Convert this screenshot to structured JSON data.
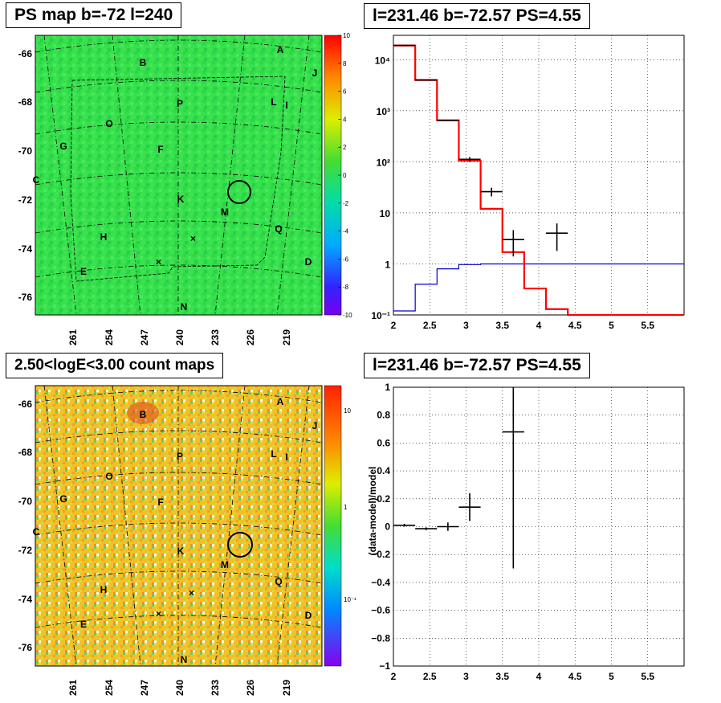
{
  "panels": {
    "tl_title": "PS map b=-72 l=240",
    "tr_title": "l=231.46 b=-72.57 PS=4.55",
    "bl_title": "2.50<logE<3.00 count maps",
    "br_title": "l=231.46 b=-72.57 PS=4.55"
  },
  "map_ticks": {
    "lat": [
      "-66",
      "-68",
      "-70",
      "-72",
      "-74",
      "-76"
    ],
    "lon": [
      "261",
      "254",
      "247",
      "240",
      "233",
      "226",
      "219"
    ]
  },
  "source_labels": [
    {
      "t": "A"
    },
    {
      "t": "B"
    },
    {
      "t": "J"
    },
    {
      "t": "P"
    },
    {
      "t": "L"
    },
    {
      "t": "I"
    },
    {
      "t": "O"
    },
    {
      "t": "G"
    },
    {
      "t": "F"
    },
    {
      "t": "C"
    },
    {
      "t": "K"
    },
    {
      "t": "M"
    },
    {
      "t": "H"
    },
    {
      "t": "Q"
    },
    {
      "t": "D"
    },
    {
      "t": "E"
    },
    {
      "t": "N"
    }
  ],
  "colorbar_ps": [
    "10",
    "8",
    "6",
    "4",
    "2",
    "0",
    "-2",
    "-4",
    "-6",
    "-8",
    "-10"
  ],
  "colorbar_counts": [
    "10",
    "1",
    "10⁻¹"
  ],
  "colors": {
    "ps_map_bg": "#33e04a",
    "count_map_bg": "#f0c020",
    "model_line": "#ff0000",
    "ps_line": "#0000cc",
    "data": "#000000"
  },
  "chart_data": [
    {
      "type": "line",
      "panel": "spectrum",
      "title": "l=231.46 b=-72.57 PS=4.55",
      "xlim": [
        2,
        6
      ],
      "ylim": [
        0.1,
        30000
      ],
      "log_y": true,
      "x_ticks": [
        "2",
        "2.5",
        "3",
        "3.5",
        "4",
        "4.5",
        "5",
        "5.5"
      ],
      "y_ticks": [
        "10⁻¹",
        "1",
        "10",
        "10²",
        "10³",
        "10⁴"
      ],
      "grid": true,
      "series": [
        {
          "style": "red-step",
          "edges": [
            2.0,
            2.3,
            2.6,
            2.9,
            3.2,
            3.5,
            3.8,
            4.1,
            4.4,
            6.0
          ],
          "values": [
            19000,
            4000,
            650,
            105,
            12,
            1.7,
            0.33,
            0.13,
            0.1
          ]
        },
        {
          "style": "blue-step",
          "edges": [
            2.0,
            2.3,
            2.6,
            2.9,
            3.2,
            6.0
          ],
          "values": [
            0.12,
            0.4,
            0.8,
            0.97,
            1.0
          ]
        },
        {
          "style": "data-points",
          "x": [
            2.15,
            2.45,
            2.75,
            3.05,
            3.35,
            3.65,
            4.25
          ],
          "y": [
            19000,
            4000,
            650,
            112,
            26,
            3,
            4
          ],
          "xerr": [
            0.15,
            0.15,
            0.15,
            0.15,
            0.15,
            0.15,
            0.15
          ],
          "yerr": [
            0,
            0,
            0,
            12,
            5,
            1.6,
            2.2
          ]
        }
      ]
    },
    {
      "type": "scatter",
      "panel": "residuals",
      "title": "l=231.46 b=-72.57 PS=4.55",
      "ylabel": "(data-model)/model",
      "xlim": [
        2,
        6
      ],
      "ylim": [
        -1,
        1
      ],
      "x_ticks": [
        "2",
        "2.5",
        "3",
        "3.5",
        "4",
        "4.5",
        "5",
        "5.5"
      ],
      "y_ticks": [
        "−1",
        "−0.8",
        "−0.6",
        "−0.4",
        "−0.2",
        "0",
        "0.2",
        "0.4",
        "0.6",
        "0.8",
        "1"
      ],
      "grid": true,
      "series": [
        {
          "x": [
            2.15,
            2.45,
            2.75,
            3.05,
            3.65
          ],
          "y": [
            0.01,
            -0.015,
            0.0,
            0.14,
            0.68
          ],
          "xerr": [
            0.15,
            0.15,
            0.15,
            0.15,
            0.15
          ],
          "yerr_lo": [
            0.01,
            0.01,
            0.03,
            0.1,
            0.98
          ],
          "yerr_hi": [
            0.01,
            0.01,
            0.03,
            0.1,
            0.32
          ]
        }
      ]
    }
  ]
}
